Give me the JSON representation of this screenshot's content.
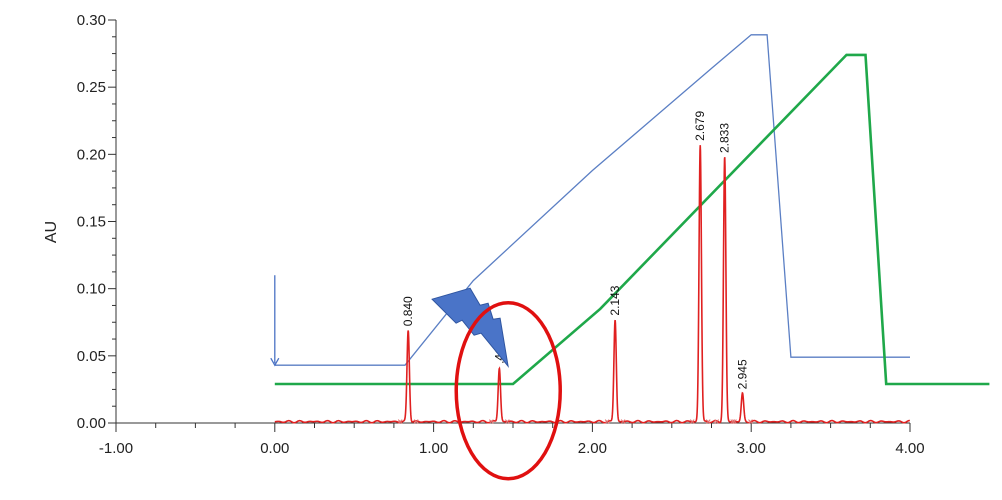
{
  "chart_data": {
    "type": "line",
    "ylabel": "AU",
    "xlim": [
      -1.0,
      4.0
    ],
    "ylim": [
      0.0,
      0.3
    ],
    "x_ticks": [
      "-1.00",
      "0.00",
      "1.00",
      "2.00",
      "3.00",
      "4.00"
    ],
    "y_ticks": [
      "0.00",
      "0.05",
      "0.10",
      "0.15",
      "0.20",
      "0.25",
      "0.30"
    ],
    "grid": false,
    "series": [
      {
        "color": "#e02020",
        "peaks": [
          {
            "x": 0.84,
            "y": 0.069,
            "label": "0.840"
          },
          {
            "x": 1.414,
            "y": 0.041,
            "label": "1.414",
            "shown_label": ".414"
          },
          {
            "x": 2.143,
            "y": 0.077,
            "label": "2.143"
          },
          {
            "x": 2.679,
            "y": 0.207,
            "label": "2.679"
          },
          {
            "x": 2.833,
            "y": 0.198,
            "label": "2.833"
          },
          {
            "x": 2.945,
            "y": 0.022,
            "label": "2.945"
          }
        ],
        "baseline": 0.001
      },
      {
        "color": "#5b7fc4",
        "x": [
          0.0,
          0.82,
          1.25,
          2.0,
          2.75,
          3.0,
          3.1,
          3.25,
          3.4,
          4.0
        ],
        "y": [
          0.043,
          0.043,
          0.106,
          0.188,
          0.264,
          0.289,
          0.289,
          0.049,
          0.049,
          0.049
        ]
      },
      {
        "color": "#1fa84a",
        "x": [
          0.0,
          1.5,
          2.05,
          3.6,
          3.72,
          3.85,
          4.5
        ],
        "y": [
          0.029,
          0.029,
          0.085,
          0.274,
          0.274,
          0.029,
          0.029
        ]
      }
    ],
    "annotations": [
      {
        "type": "arrow",
        "color": "#4a72c4",
        "x": 0.0,
        "y_from": 0.11,
        "y_to": 0.043
      },
      {
        "type": "lightning-bolt",
        "color": "#4a74c8",
        "near_x": 1.45,
        "near_y": 0.043
      },
      {
        "type": "ellipse",
        "color": "#e01010",
        "cx": 1.47,
        "cy": 0.024
      }
    ]
  }
}
